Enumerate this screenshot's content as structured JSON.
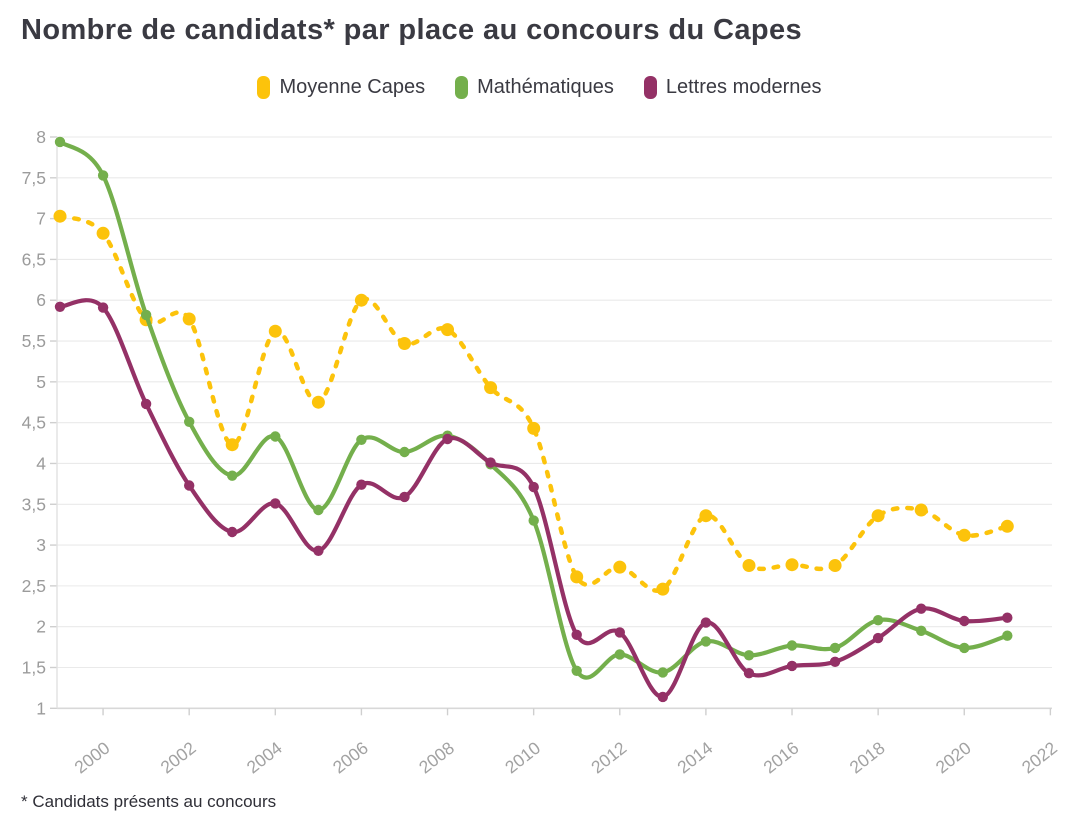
{
  "title": "Nombre de candidats* par place au concours du Capes",
  "footnote": "* Candidats présents au concours",
  "colors": {
    "moyenne": "#FCC30B",
    "maths": "#74AF4C",
    "lettres": "#943166",
    "title_text": "#3A3A42",
    "axis_label": "#A2A2A2",
    "gridline": "#EAEAEA",
    "axis_line": "#D8D8D8",
    "tick": "#CFCFCF"
  },
  "legend": [
    {
      "label": "Moyenne Capes",
      "color": "#FCC30B"
    },
    {
      "label": "Mathématiques",
      "color": "#74AF4C"
    },
    {
      "label": "Lettres modernes",
      "color": "#943166"
    }
  ],
  "chart_data": {
    "type": "line",
    "title": "Nombre de candidats* par place au concours du Capes",
    "xlabel": "",
    "ylabel": "",
    "x": [
      1999,
      2000,
      2001,
      2002,
      2003,
      2004,
      2005,
      2006,
      2007,
      2008,
      2009,
      2010,
      2011,
      2012,
      2013,
      2014,
      2015,
      2016,
      2017,
      2018,
      2019,
      2020,
      2021
    ],
    "series": [
      {
        "name": "Moyenne Capes",
        "color": "#FCC30B",
        "line_style": "dashed",
        "values": [
          7.03,
          6.82,
          5.76,
          5.77,
          4.23,
          5.62,
          4.75,
          6.0,
          5.47,
          5.64,
          4.93,
          4.43,
          2.61,
          2.73,
          2.46,
          3.36,
          2.75,
          2.76,
          2.75,
          3.36,
          3.43,
          3.12,
          3.23
        ]
      },
      {
        "name": "Mathématiques",
        "color": "#74AF4C",
        "line_style": "solid",
        "values": [
          7.94,
          7.53,
          5.82,
          4.51,
          3.85,
          4.33,
          3.43,
          4.29,
          4.14,
          4.34,
          3.99,
          3.3,
          1.46,
          1.66,
          1.44,
          1.82,
          1.65,
          1.77,
          1.74,
          2.08,
          1.95,
          1.74,
          1.89
        ]
      },
      {
        "name": "Lettres modernes",
        "color": "#943166",
        "line_style": "solid",
        "values": [
          5.92,
          5.91,
          4.73,
          3.73,
          3.16,
          3.51,
          2.93,
          3.74,
          3.59,
          4.3,
          4.01,
          3.71,
          1.9,
          1.93,
          1.14,
          2.05,
          1.43,
          1.52,
          1.57,
          1.86,
          2.22,
          2.07,
          2.11
        ]
      }
    ],
    "ylim": [
      1,
      8
    ],
    "xlim": [
      1999,
      2022
    ],
    "y_tick_labels": [
      "8",
      "7,5",
      "7",
      "6,5",
      "6",
      "5,5",
      "5",
      "4,5",
      "4",
      "3,5",
      "3",
      "2,5",
      "2",
      "1,5",
      "1"
    ],
    "x_tick_labels": [
      "2000",
      "2002",
      "2004",
      "2006",
      "2008",
      "2010",
      "2012",
      "2014",
      "2016",
      "2018",
      "2020",
      "2022"
    ],
    "decimal_separator": ",",
    "grid": true,
    "legend_position": "top",
    "markers": true
  }
}
